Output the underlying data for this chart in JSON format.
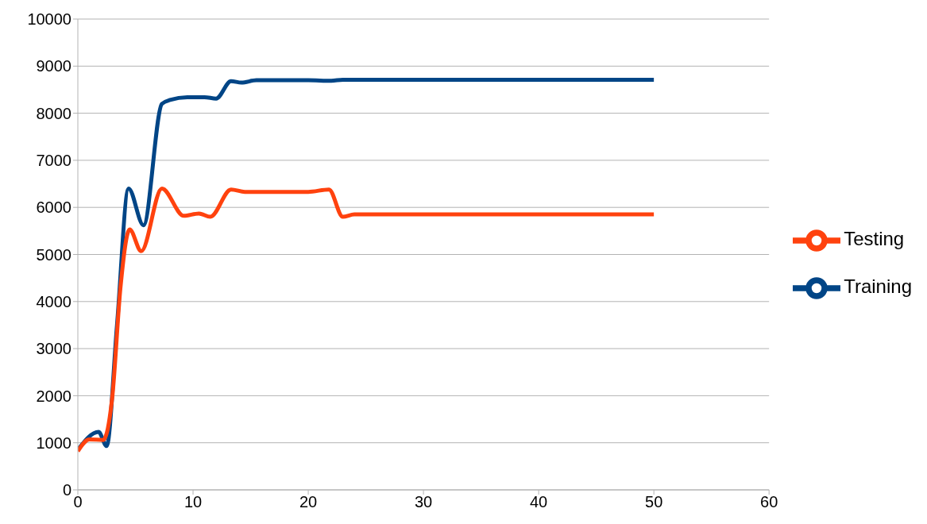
{
  "chart_data": {
    "type": "line",
    "xlim": [
      0,
      60
    ],
    "xticks": [
      0,
      10,
      20,
      30,
      40,
      50,
      60
    ],
    "ylim": [
      0,
      10000
    ],
    "yticks": [
      0,
      1000,
      2000,
      3000,
      4000,
      5000,
      6000,
      7000,
      8000,
      9000,
      10000
    ],
    "grid": "y",
    "legend": "right",
    "marker": "none",
    "line_style": "solid",
    "series": [
      {
        "name": "Training",
        "color": "#004586",
        "x": [
          0,
          1.8,
          2.5,
          3.4,
          4.4,
          5.7,
          7.3,
          8,
          9.5,
          11,
          12,
          13.3,
          14.2,
          15.5,
          20,
          22,
          23,
          50
        ],
        "values": [
          850,
          1230,
          930,
          3500,
          6400,
          5620,
          8200,
          8280,
          8340,
          8340,
          8310,
          8680,
          8650,
          8700,
          8700,
          8690,
          8710,
          8710
        ]
      },
      {
        "name": "Testing",
        "color": "#ff420e",
        "x": [
          0,
          1,
          2.2,
          3,
          3.7,
          4.5,
          5.5,
          7.3,
          9.2,
          10.5,
          11.5,
          13.3,
          14.5,
          20,
          21.8,
          23,
          24,
          50
        ],
        "values": [
          820,
          1070,
          1060,
          2000,
          4300,
          5530,
          5070,
          6400,
          5820,
          5870,
          5800,
          6380,
          6330,
          6330,
          6380,
          5800,
          5850,
          5850
        ]
      }
    ]
  }
}
